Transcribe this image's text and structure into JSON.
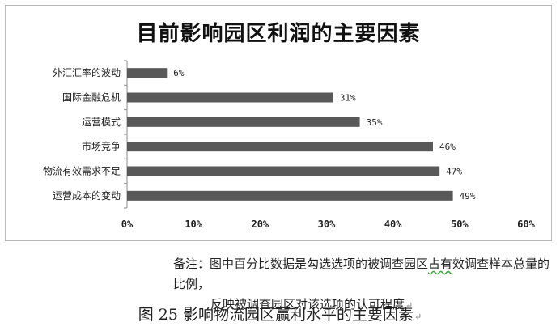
{
  "chart_data": {
    "type": "bar",
    "orientation": "horizontal",
    "title": "目前影响园区利润的主要因素",
    "categories": [
      "外汇汇率的波动",
      "国际金融危机",
      "运营模式",
      "市场竞争",
      "物流有效需求不足",
      "运营成本的变动"
    ],
    "values": [
      6,
      31,
      35,
      46,
      47,
      49
    ],
    "value_labels": [
      "6%",
      "31%",
      "35%",
      "46%",
      "47%",
      "49%"
    ],
    "xlim": [
      0,
      60
    ],
    "x_ticks": [
      "0%",
      "10%",
      "20%",
      "30%",
      "40%",
      "50%",
      "60%"
    ],
    "bar_color": "#595959",
    "grid": false,
    "legend": "none"
  },
  "note": {
    "prefix": "备注：",
    "line1_before": "图中百分比数据是勾选选项的被调查园区",
    "line1_wavy": "占有",
    "line1_after": "效调查样本总量的比例，",
    "line2": "反映被调查园区对该选项的认可程度"
  },
  "figure_caption": "图 25  影响物流园区赢利水平的主要因素",
  "return_mark": "↵"
}
